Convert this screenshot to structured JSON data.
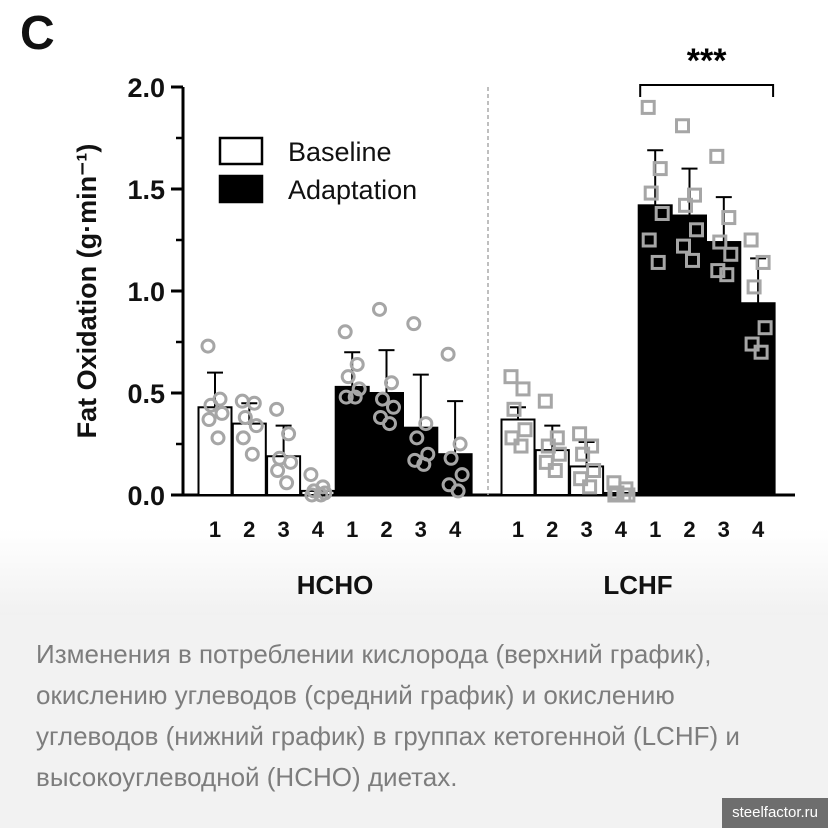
{
  "panel_label": "C",
  "caption": "Изменения в потреблении кислорода (верхний график), окислению углеводов (средний график) и окислению углеводов (нижний график) в группах кетогенной (LCHF) и высокоуглеводной (HCHO) диетах.",
  "watermark": "steelfactor.ru",
  "colors": {
    "baseline_fill": "#ffffff",
    "adaptation_fill": "#000000",
    "hcho_marker": "#a6a6a6",
    "lchf_marker": "#a6a6a6"
  },
  "chart_data": {
    "type": "bar",
    "ylabel": "Fat Oxidation (g·min⁻¹)",
    "ylim": [
      0,
      2.0
    ],
    "yticks": [
      "0.0",
      "0.5",
      "1.0",
      "1.5",
      "2.0"
    ],
    "legend": {
      "placement": "top-left",
      "entries": [
        {
          "label": "Baseline",
          "fill": "#ffffff"
        },
        {
          "label": "Adaptation",
          "fill": "#000000"
        }
      ]
    },
    "significance": {
      "label": "***",
      "group": "LCHF",
      "condition": "Adaptation"
    },
    "groups": [
      {
        "name": "HCHO",
        "marker": "circle",
        "conditions": [
          {
            "name": "Baseline",
            "bars": [
              {
                "x": "1",
                "mean": 0.43,
                "sd": 0.17,
                "points": [
                  0.73,
                  0.47,
                  0.44,
                  0.4,
                  0.37,
                  0.28
                ]
              },
              {
                "x": "2",
                "mean": 0.35,
                "sd": 0.1,
                "points": [
                  0.46,
                  0.45,
                  0.38,
                  0.34,
                  0.28,
                  0.2
                ]
              },
              {
                "x": "3",
                "mean": 0.19,
                "sd": 0.15,
                "points": [
                  0.42,
                  0.3,
                  0.18,
                  0.16,
                  0.12,
                  0.06
                ]
              },
              {
                "x": "4",
                "mean": 0.02,
                "sd": 0.0,
                "points": [
                  0.1,
                  0.04,
                  0.02,
                  0.01,
                  0.0,
                  0.0
                ]
              }
            ]
          },
          {
            "name": "Adaptation",
            "bars": [
              {
                "x": "1",
                "mean": 0.53,
                "sd": 0.17,
                "points": [
                  0.8,
                  0.64,
                  0.58,
                  0.52,
                  0.48,
                  0.48
                ]
              },
              {
                "x": "2",
                "mean": 0.5,
                "sd": 0.21,
                "points": [
                  0.91,
                  0.55,
                  0.47,
                  0.43,
                  0.38,
                  0.35
                ]
              },
              {
                "x": "3",
                "mean": 0.33,
                "sd": 0.26,
                "points": [
                  0.84,
                  0.35,
                  0.28,
                  0.2,
                  0.17,
                  0.15
                ]
              },
              {
                "x": "4",
                "mean": 0.2,
                "sd": 0.26,
                "points": [
                  0.69,
                  0.25,
                  0.18,
                  0.1,
                  0.05,
                  0.02
                ]
              }
            ]
          }
        ]
      },
      {
        "name": "LCHF",
        "marker": "square",
        "conditions": [
          {
            "name": "Baseline",
            "bars": [
              {
                "x": "1",
                "mean": 0.37,
                "sd": 0.06,
                "points": [
                  0.58,
                  0.52,
                  0.42,
                  0.32,
                  0.28,
                  0.24
                ]
              },
              {
                "x": "2",
                "mean": 0.22,
                "sd": 0.12,
                "points": [
                  0.46,
                  0.28,
                  0.24,
                  0.2,
                  0.16,
                  0.12
                ]
              },
              {
                "x": "3",
                "mean": 0.14,
                "sd": 0.12,
                "points": [
                  0.3,
                  0.24,
                  0.2,
                  0.12,
                  0.08,
                  0.04
                ]
              },
              {
                "x": "4",
                "mean": 0.01,
                "sd": 0.0,
                "points": [
                  0.06,
                  0.03,
                  0.01,
                  0.0,
                  0.0,
                  0.0
                ]
              }
            ]
          },
          {
            "name": "Adaptation",
            "bars": [
              {
                "x": "1",
                "mean": 1.42,
                "sd": 0.27,
                "points": [
                  1.9,
                  1.6,
                  1.48,
                  1.38,
                  1.25,
                  1.14
                ]
              },
              {
                "x": "2",
                "mean": 1.37,
                "sd": 0.23,
                "points": [
                  1.81,
                  1.47,
                  1.42,
                  1.3,
                  1.22,
                  1.15
                ]
              },
              {
                "x": "3",
                "mean": 1.24,
                "sd": 0.22,
                "points": [
                  1.66,
                  1.36,
                  1.24,
                  1.18,
                  1.1,
                  1.08
                ]
              },
              {
                "x": "4",
                "mean": 0.94,
                "sd": 0.22,
                "points": [
                  1.25,
                  1.14,
                  1.02,
                  0.82,
                  0.74,
                  0.7
                ]
              }
            ]
          }
        ]
      }
    ]
  }
}
